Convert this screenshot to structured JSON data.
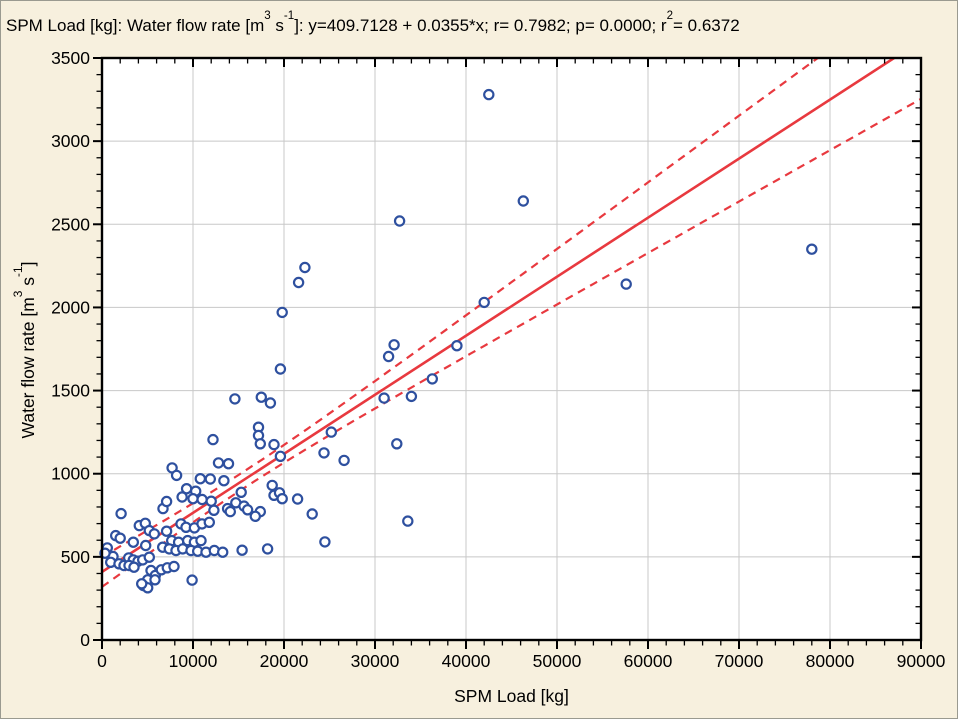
{
  "title": {
    "plain": "SPM Load [kg]: Water flow rate [m3 s-1]: y=409.7128 + 0.0355*x; r= 0.7982; p= 0.0000; r2= 0.6372",
    "segments": [
      {
        "t": "SPM Load [kg]: Water flow rate [m"
      },
      {
        "t": "3",
        "sup": true
      },
      {
        "t": " s"
      },
      {
        "t": "-1",
        "sup": true
      },
      {
        "t": "]: y=409.7128 + 0.0355*x; r= 0.7982; p= 0.0000; r"
      },
      {
        "t": "2",
        "sup": true
      },
      {
        "t": "= 0.6372"
      }
    ]
  },
  "chart_data": {
    "type": "scatter",
    "title": "SPM Load [kg]: Water flow rate [m3 s-1]: y=409.7128 + 0.0355*x; r= 0.7982; p= 0.0000; r2= 0.6372",
    "xlabel": "SPM Load [kg]",
    "ylabel": "Water flow rate [m3 s-1]",
    "ylabel_segments": [
      {
        "t": "Water flow rate [m"
      },
      {
        "t": "3",
        "sup": true
      },
      {
        "t": " s"
      },
      {
        "t": "-1",
        "sup": true
      },
      {
        "t": "]"
      }
    ],
    "xlim": [
      0,
      90000
    ],
    "ylim": [
      0,
      3500
    ],
    "x_ticks": [
      0,
      10000,
      20000,
      30000,
      40000,
      50000,
      60000,
      70000,
      80000,
      90000
    ],
    "x_tick_labels": [
      "0",
      "10000",
      "20000",
      "30000",
      "40000",
      "50000",
      "60000",
      "70000",
      "80000",
      "90000"
    ],
    "y_ticks": [
      0,
      500,
      1000,
      1500,
      2000,
      2500,
      3000,
      3500
    ],
    "y_tick_labels": [
      "0",
      "500",
      "1000",
      "1500",
      "2000",
      "2500",
      "3000",
      "3500"
    ],
    "x_minor_step": 2000,
    "y_minor_step": 100,
    "grid": true,
    "legend": "none",
    "regression": {
      "equation": "y=409.7128 + 0.0355*x",
      "intercept": 409.7128,
      "slope": 0.0355,
      "r": 0.7982,
      "p": 0.0,
      "r2": 0.6372
    },
    "confidence_band": {
      "a": 2500,
      "b": 2.2e-05,
      "center_x": 16000
    },
    "points": [
      [
        42500,
        3280
      ],
      [
        46300,
        2640
      ],
      [
        32700,
        2520
      ],
      [
        78000,
        2350
      ],
      [
        57600,
        2140
      ],
      [
        42000,
        2030
      ],
      [
        22300,
        2240
      ],
      [
        21600,
        2150
      ],
      [
        19800,
        1970
      ],
      [
        32100,
        1775
      ],
      [
        39000,
        1770
      ],
      [
        31500,
        1705
      ],
      [
        19600,
        1630
      ],
      [
        36300,
        1570
      ],
      [
        34000,
        1465
      ],
      [
        31000,
        1455
      ],
      [
        17500,
        1460
      ],
      [
        14600,
        1450
      ],
      [
        18500,
        1425
      ],
      [
        17200,
        1280
      ],
      [
        17200,
        1230
      ],
      [
        17400,
        1180
      ],
      [
        25200,
        1250
      ],
      [
        24400,
        1125
      ],
      [
        26600,
        1080
      ],
      [
        32400,
        1180
      ],
      [
        12200,
        1205
      ],
      [
        18900,
        1175
      ],
      [
        19600,
        1105
      ],
      [
        12800,
        1065
      ],
      [
        13900,
        1060
      ],
      [
        7700,
        1035
      ],
      [
        8200,
        990
      ],
      [
        10800,
        970
      ],
      [
        11900,
        968
      ],
      [
        13400,
        958
      ],
      [
        9300,
        910
      ],
      [
        10300,
        895
      ],
      [
        8800,
        860
      ],
      [
        10000,
        850
      ],
      [
        11000,
        845
      ],
      [
        12000,
        835
      ],
      [
        18700,
        930
      ],
      [
        15300,
        888
      ],
      [
        18900,
        870
      ],
      [
        19500,
        885
      ],
      [
        19800,
        850
      ],
      [
        21500,
        848
      ],
      [
        14700,
        825
      ],
      [
        15600,
        805
      ],
      [
        16000,
        783
      ],
      [
        17400,
        772
      ],
      [
        16850,
        744
      ],
      [
        23100,
        758
      ],
      [
        12300,
        780
      ],
      [
        13800,
        790
      ],
      [
        14100,
        772
      ],
      [
        6700,
        790
      ],
      [
        7100,
        833
      ],
      [
        2100,
        760
      ],
      [
        4100,
        688
      ],
      [
        4760,
        702
      ],
      [
        5200,
        658
      ],
      [
        5750,
        638
      ],
      [
        1500,
        628
      ],
      [
        2000,
        612
      ],
      [
        3440,
        588
      ],
      [
        7100,
        654
      ],
      [
        8680,
        698
      ],
      [
        9230,
        678
      ],
      [
        10150,
        674
      ],
      [
        10990,
        698
      ],
      [
        11790,
        708
      ],
      [
        7660,
        598
      ],
      [
        8420,
        588
      ],
      [
        9420,
        598
      ],
      [
        10150,
        588
      ],
      [
        10880,
        598
      ],
      [
        6670,
        558
      ],
      [
        7400,
        548
      ],
      [
        8130,
        538
      ],
      [
        8870,
        548
      ],
      [
        9780,
        538
      ],
      [
        10520,
        534
      ],
      [
        11430,
        528
      ],
      [
        12340,
        538
      ],
      [
        13260,
        528
      ],
      [
        15400,
        540
      ],
      [
        18200,
        548
      ],
      [
        24500,
        590
      ],
      [
        2930,
        494
      ],
      [
        3440,
        482
      ],
      [
        3960,
        474
      ],
      [
        4470,
        482
      ],
      [
        5200,
        498
      ],
      [
        1210,
        502
      ],
      [
        956,
        467
      ],
      [
        1870,
        458
      ],
      [
        2420,
        448
      ],
      [
        2970,
        448
      ],
      [
        3520,
        438
      ],
      [
        582,
        554
      ],
      [
        330,
        522
      ],
      [
        4800,
        568
      ],
      [
        5380,
        418
      ],
      [
        5860,
        388
      ],
      [
        6520,
        422
      ],
      [
        7180,
        434
      ],
      [
        7910,
        442
      ],
      [
        5020,
        362
      ],
      [
        5820,
        362
      ],
      [
        4540,
        328
      ],
      [
        5020,
        314
      ],
      [
        4360,
        338
      ],
      [
        9900,
        360
      ],
      [
        33600,
        715
      ]
    ]
  },
  "colors": {
    "background": "#f7f0de",
    "plot_background": "#ffffff",
    "grid": "#c8c8c8",
    "axis": "#000000",
    "text": "#000000",
    "marker_stroke": "#2e509f",
    "marker_fill": "#ffffff",
    "regression_line": "#e8393f",
    "confidence_band": "#e8393f"
  }
}
